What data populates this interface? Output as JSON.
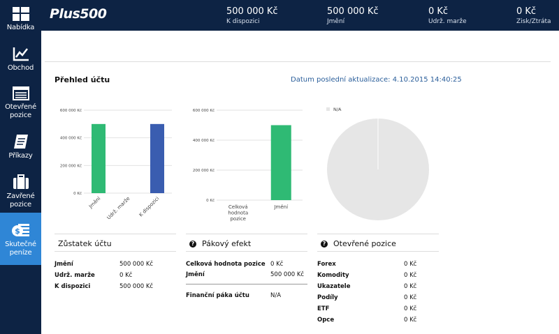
{
  "sidebar": {
    "items": [
      {
        "label": "Nabídka",
        "icon": "grid-icon"
      },
      {
        "label": "Obchod",
        "icon": "line-chart-icon"
      },
      {
        "label": "Otevřené\npozice",
        "icon": "list-icon"
      },
      {
        "label": "Příkazy",
        "icon": "orders-book-icon"
      },
      {
        "label": "Zavřené\npozice",
        "icon": "briefcase-icon"
      },
      {
        "label": "Skutečné\npeníze",
        "icon": "money-icon",
        "active": true
      }
    ]
  },
  "header": {
    "logo": "Plus500",
    "stats": [
      {
        "value": "500 000 Kč",
        "label": "K dispozici"
      },
      {
        "value": "500 000 Kč",
        "label": "Jmění"
      },
      {
        "value": "0 Kč",
        "label": "Udrž. marže"
      },
      {
        "value": "0 Kč",
        "label": "Zisk/Ztráta"
      }
    ]
  },
  "overview": {
    "title": "Přehled účtu",
    "updated": "Datum poslední aktualizace: 4.10.2015 14:40:25"
  },
  "chart_data": [
    {
      "type": "bar",
      "categories": [
        "Jmění",
        "Udrž. marže",
        "K dispozici"
      ],
      "values": [
        500000,
        0,
        500000
      ],
      "colors": [
        "#2fba74",
        "#2fba74",
        "#3a5db0"
      ],
      "yticks": [
        "0 Kč",
        "200 000 Kč",
        "400 000 Kč",
        "600 000 Kč"
      ],
      "ylim": [
        0,
        600000
      ]
    },
    {
      "type": "bar",
      "categories": [
        "Celková\nhodnota\npozice",
        "Jmění"
      ],
      "values": [
        0,
        500000
      ],
      "colors": [
        "#2fba74",
        "#2fba74"
      ],
      "yticks": [
        "0 Kč",
        "200 000 Kč",
        "400 000 Kč",
        "600 000 Kč"
      ],
      "ylim": [
        0,
        600000
      ]
    },
    {
      "type": "pie",
      "legend": [
        "N/A"
      ],
      "values": [
        1
      ],
      "colors": [
        "#e6e6e6"
      ]
    }
  ],
  "balance": {
    "title": "Zůstatek účtu",
    "rows": [
      {
        "label": "Jmění",
        "value": "500 000 Kč"
      },
      {
        "label": "Udrž. marže",
        "value": "0 Kč"
      },
      {
        "label": "K dispozici",
        "value": "500 000 Kč"
      }
    ]
  },
  "leverage": {
    "title": "Pákový efekt",
    "rows": [
      {
        "label": "Celková hodnota pozice",
        "value": "0 Kč"
      },
      {
        "label": "Jmění",
        "value": "500 000 Kč"
      }
    ],
    "footer": {
      "label": "Finanční páka účtu",
      "value": "N/A"
    }
  },
  "open_positions": {
    "title": "Otevřené pozice",
    "rows": [
      {
        "label": "Forex",
        "value": "0 Kč"
      },
      {
        "label": "Komodity",
        "value": "0 Kč"
      },
      {
        "label": "Ukazatele",
        "value": "0 Kč"
      },
      {
        "label": "Podíly",
        "value": "0 Kč"
      },
      {
        "label": "ETF",
        "value": "0 Kč"
      },
      {
        "label": "Opce",
        "value": "0 Kč"
      }
    ]
  },
  "colors": {
    "navy": "#0d2344",
    "active": "#2f86d6",
    "green": "#2fba74",
    "blue": "#3a5db0",
    "link": "#2a5e9a"
  }
}
